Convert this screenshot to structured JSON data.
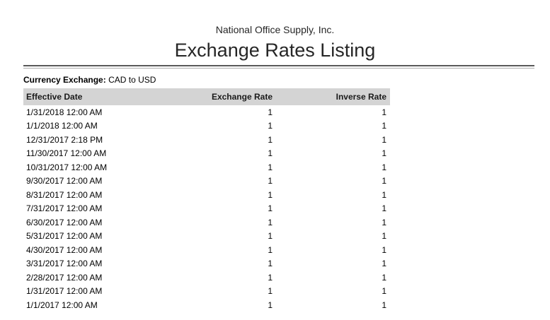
{
  "header": {
    "company": "National Office Supply, Inc.",
    "title": "Exchange Rates Listing"
  },
  "filter": {
    "label": "Currency Exchange:",
    "value": "CAD to USD"
  },
  "table": {
    "columns": [
      "Effective Date",
      "Exchange Rate",
      "Inverse Rate"
    ],
    "rows": [
      {
        "effective_date": "1/31/2018 12:00 AM",
        "exchange_rate": "1",
        "inverse_rate": "1"
      },
      {
        "effective_date": "1/1/2018 12:00 AM",
        "exchange_rate": "1",
        "inverse_rate": "1"
      },
      {
        "effective_date": "12/31/2017 2:18 PM",
        "exchange_rate": "1",
        "inverse_rate": "1"
      },
      {
        "effective_date": "11/30/2017 12:00 AM",
        "exchange_rate": "1",
        "inverse_rate": "1"
      },
      {
        "effective_date": "10/31/2017 12:00 AM",
        "exchange_rate": "1",
        "inverse_rate": "1"
      },
      {
        "effective_date": "9/30/2017 12:00 AM",
        "exchange_rate": "1",
        "inverse_rate": "1"
      },
      {
        "effective_date": "8/31/2017 12:00 AM",
        "exchange_rate": "1",
        "inverse_rate": "1"
      },
      {
        "effective_date": "7/31/2017 12:00 AM",
        "exchange_rate": "1",
        "inverse_rate": "1"
      },
      {
        "effective_date": "6/30/2017 12:00 AM",
        "exchange_rate": "1",
        "inverse_rate": "1"
      },
      {
        "effective_date": "5/31/2017 12:00 AM",
        "exchange_rate": "1",
        "inverse_rate": "1"
      },
      {
        "effective_date": "4/30/2017 12:00 AM",
        "exchange_rate": "1",
        "inverse_rate": "1"
      },
      {
        "effective_date": "3/31/2017 12:00 AM",
        "exchange_rate": "1",
        "inverse_rate": "1"
      },
      {
        "effective_date": "2/28/2017 12:00 AM",
        "exchange_rate": "1",
        "inverse_rate": "1"
      },
      {
        "effective_date": "1/31/2017 12:00 AM",
        "exchange_rate": "1",
        "inverse_rate": "1"
      },
      {
        "effective_date": "1/1/2017 12:00 AM",
        "exchange_rate": "1",
        "inverse_rate": "1"
      }
    ]
  },
  "colors": {
    "table_header_bg": "#d4d4d4",
    "rule_dark": "#595959",
    "rule_light": "#a9a9a9",
    "text": "#1f1f1f"
  }
}
